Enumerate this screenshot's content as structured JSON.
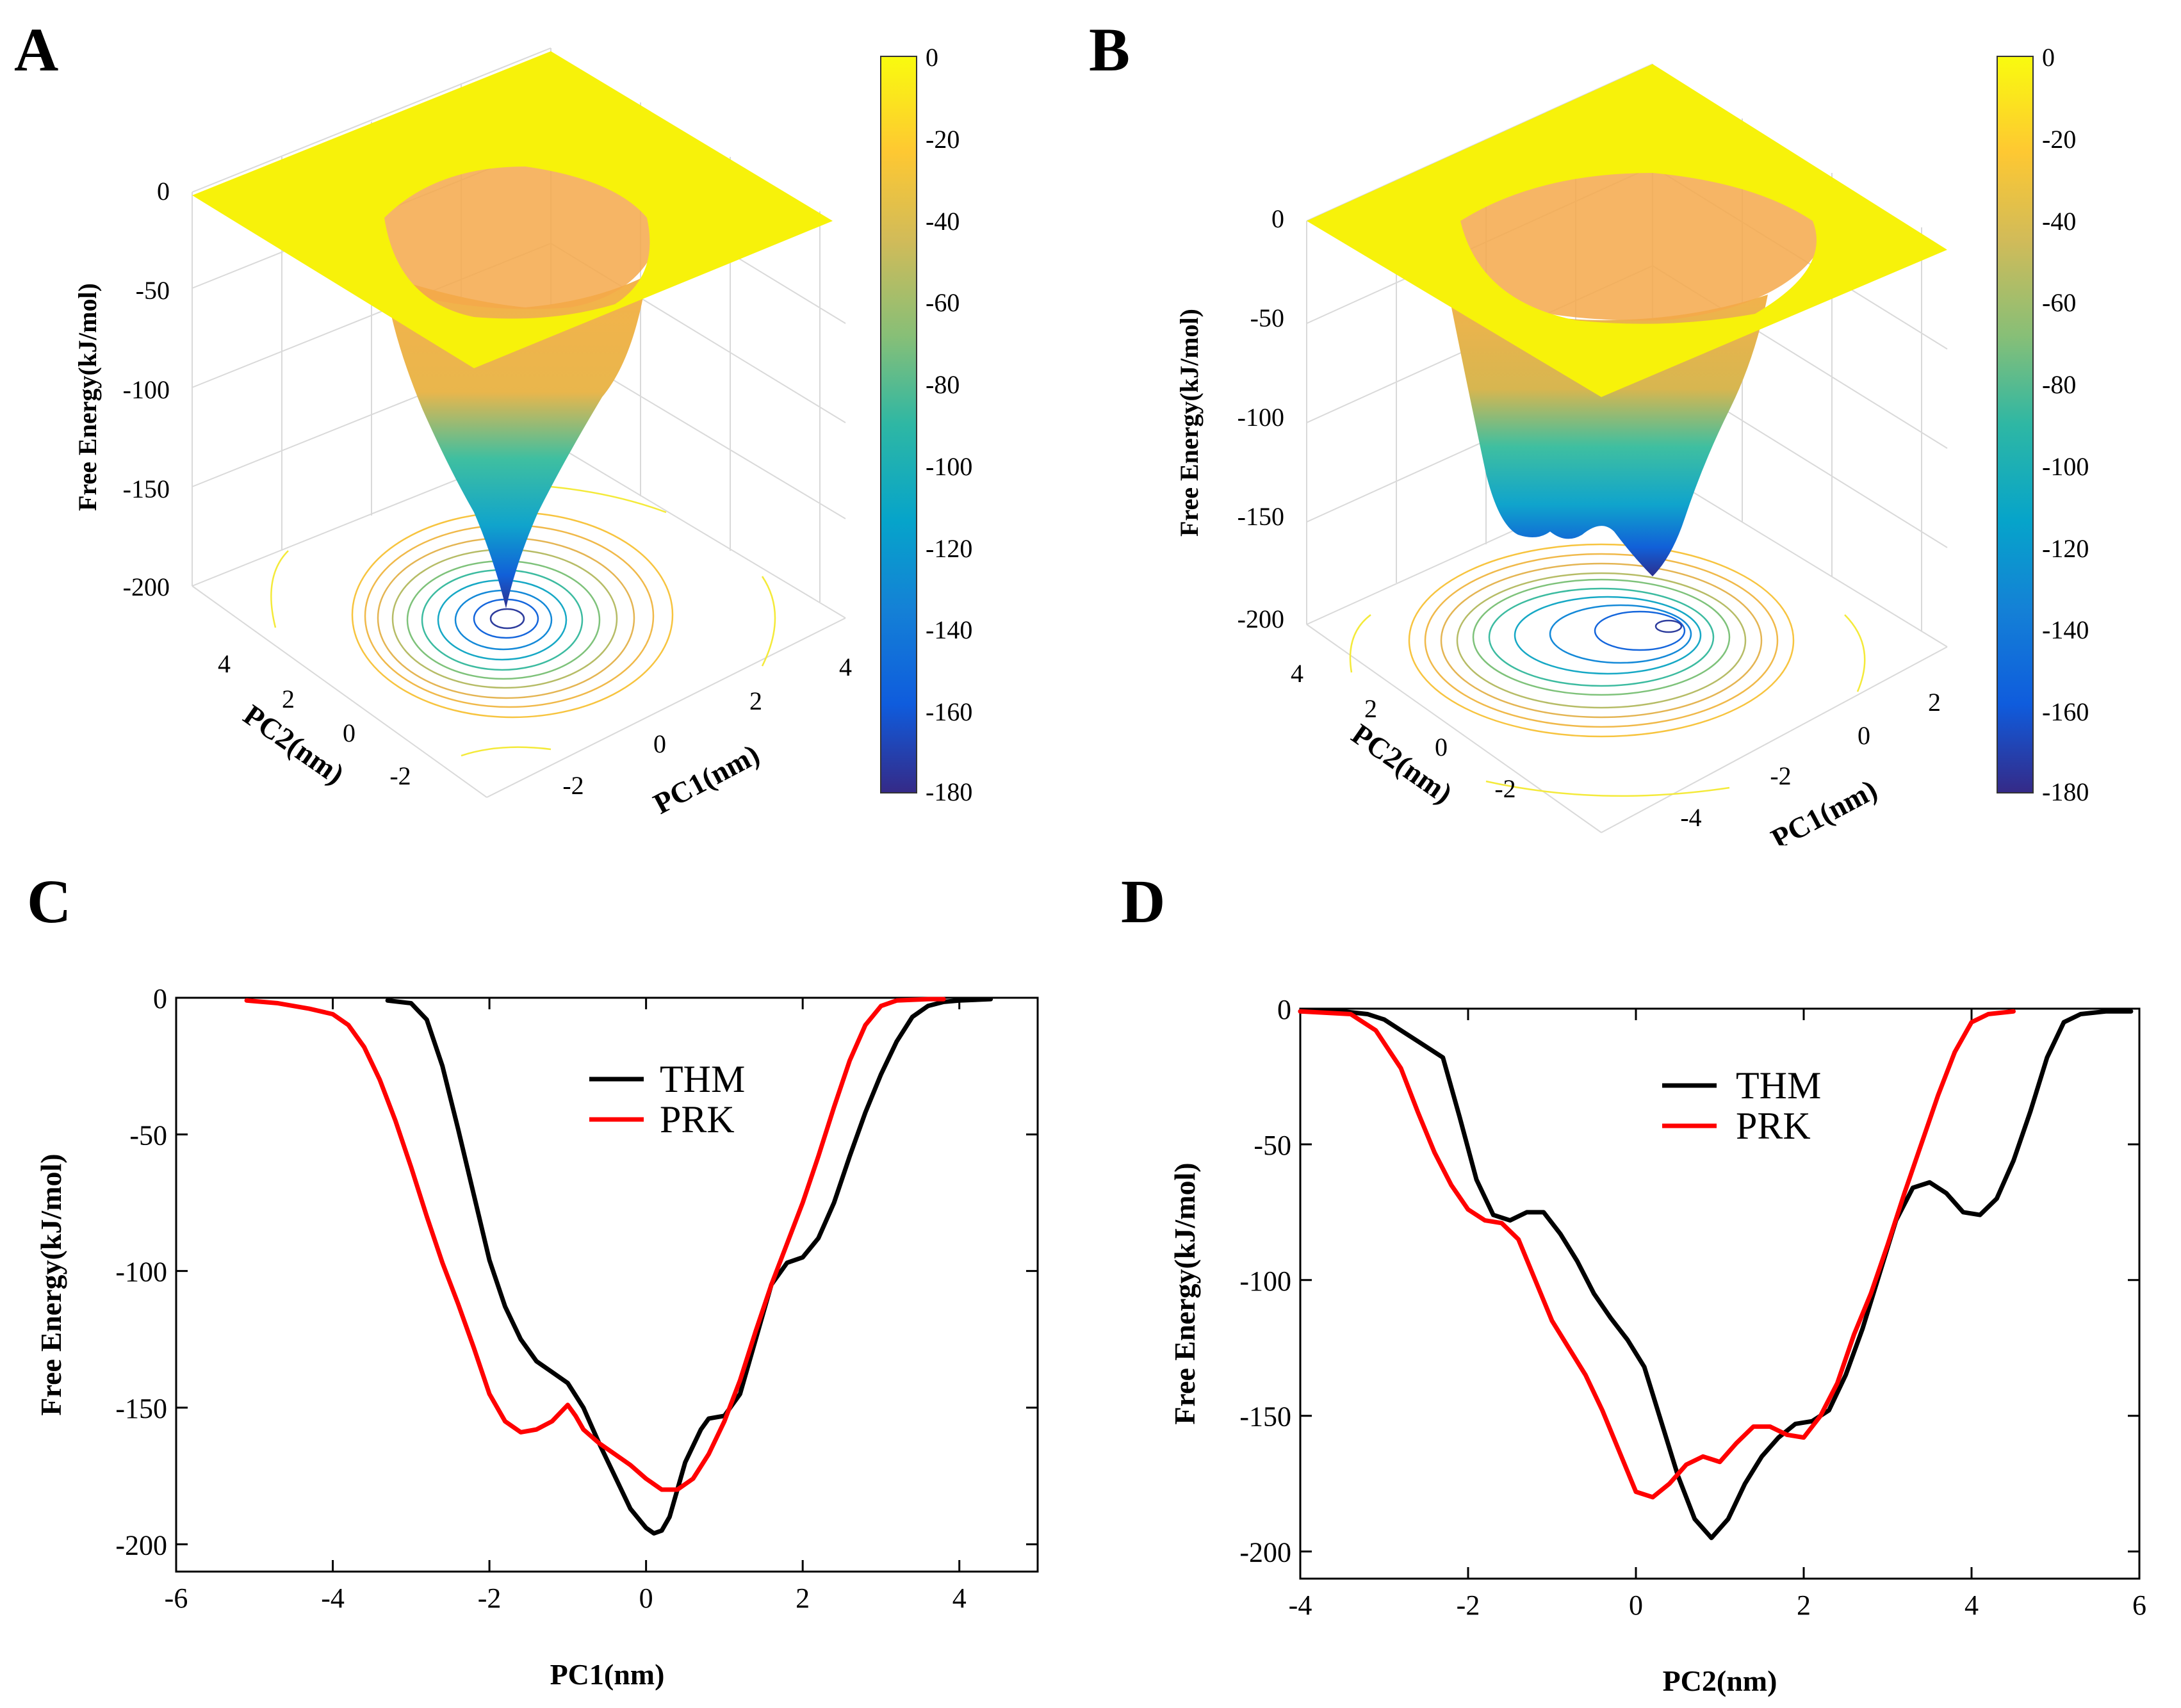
{
  "panels": {
    "A": {
      "letter": "A"
    },
    "B": {
      "letter": "B"
    },
    "C": {
      "letter": "C"
    },
    "D": {
      "letter": "D"
    }
  },
  "chart_data": [
    {
      "id": "A",
      "type": "heatmap",
      "title": "",
      "xlabel": "PC1(nm)",
      "ylabel": "PC2(nm)",
      "zlabel": "Free Energy(kJ/mol)",
      "x_ticks": [
        "-2",
        "0",
        "2",
        "4"
      ],
      "y_ticks": [
        "-2",
        "0",
        "2",
        "4"
      ],
      "z_ticks": [
        "0",
        "-50",
        "-100",
        "-150",
        "-200"
      ],
      "colorbar": {
        "ticks": [
          "0",
          "-20",
          "-40",
          "-60",
          "-80",
          "-100",
          "-120",
          "-140",
          "-160",
          "-180"
        ],
        "range": [
          -180,
          0
        ],
        "colors": [
          "#352a87",
          "#0f5cdd",
          "#1481d6",
          "#06a4ca",
          "#2eb7a4",
          "#87bf77",
          "#d1bb59",
          "#fec832",
          "#f9fb0e"
        ]
      },
      "minimum": -195
    },
    {
      "id": "B",
      "type": "heatmap",
      "title": "",
      "xlabel": "PC1(nm)",
      "ylabel": "PC2(nm)",
      "zlabel": "Free Energy(kJ/mol)",
      "x_ticks": [
        "-4",
        "-2",
        "0",
        "2"
      ],
      "y_ticks": [
        "-2",
        "0",
        "2",
        "4"
      ],
      "z_ticks": [
        "0",
        "-50",
        "-100",
        "-150",
        "-200"
      ],
      "colorbar": {
        "ticks": [
          "0",
          "-20",
          "-40",
          "-60",
          "-80",
          "-100",
          "-120",
          "-140",
          "-160",
          "-180"
        ],
        "range": [
          -180,
          0
        ],
        "colors": [
          "#352a87",
          "#0f5cdd",
          "#1481d6",
          "#06a4ca",
          "#2eb7a4",
          "#87bf77",
          "#d1bb59",
          "#fec832",
          "#f9fb0e"
        ]
      },
      "minimum": -180
    },
    {
      "id": "C",
      "type": "line",
      "xlabel": "PC1(nm)",
      "ylabel": "Free Energy(kJ/mol)",
      "xlim": [
        -6,
        5
      ],
      "ylim": [
        -210,
        0
      ],
      "x_ticks": [
        -6,
        -4,
        -2,
        0,
        2,
        4
      ],
      "y_ticks": [
        0,
        -50,
        -100,
        -150,
        -200
      ],
      "legend_position": "top-right",
      "series": [
        {
          "name": "THM",
          "color": "#000000",
          "x": [
            -3.3,
            -3.0,
            -2.8,
            -2.6,
            -2.4,
            -2.2,
            -2.0,
            -1.8,
            -1.6,
            -1.4,
            -1.2,
            -1.0,
            -0.8,
            -0.6,
            -0.4,
            -0.2,
            0.0,
            0.1,
            0.2,
            0.3,
            0.4,
            0.5,
            0.7,
            0.8,
            1.0,
            1.2,
            1.4,
            1.6,
            1.8,
            2.0,
            2.2,
            2.4,
            2.6,
            2.8,
            3.0,
            3.2,
            3.4,
            3.6,
            3.8,
            4.0,
            4.4
          ],
          "values": [
            -1,
            -2,
            -8,
            -25,
            -48,
            -72,
            -96,
            -113,
            -125,
            -133,
            -137,
            -141,
            -150,
            -163,
            -175,
            -187,
            -194,
            -196,
            -195,
            -190,
            -180,
            -170,
            -158,
            -154,
            -153,
            -145,
            -125,
            -105,
            -97,
            -95,
            -88,
            -75,
            -58,
            -42,
            -28,
            -16,
            -7,
            -3,
            -1.5,
            -1,
            -0.5
          ]
        },
        {
          "name": "PRK",
          "color": "#ff0000",
          "x": [
            -5.1,
            -4.7,
            -4.3,
            -4.0,
            -3.8,
            -3.6,
            -3.4,
            -3.2,
            -3.0,
            -2.8,
            -2.6,
            -2.4,
            -2.2,
            -2.0,
            -1.8,
            -1.6,
            -1.4,
            -1.2,
            -1.0,
            -0.9,
            -0.8,
            -0.6,
            -0.4,
            -0.2,
            0.0,
            0.2,
            0.4,
            0.6,
            0.8,
            1.0,
            1.2,
            1.4,
            1.6,
            1.8,
            2.0,
            2.2,
            2.4,
            2.6,
            2.8,
            3.0,
            3.2,
            3.6,
            3.8
          ],
          "values": [
            -1,
            -2,
            -4,
            -6,
            -10,
            -18,
            -30,
            -45,
            -62,
            -80,
            -97,
            -112,
            -128,
            -145,
            -155,
            -159,
            -158,
            -155,
            -149,
            -153,
            -158,
            -163,
            -167,
            -171,
            -176,
            -180,
            -180,
            -176,
            -167,
            -155,
            -140,
            -122,
            -105,
            -90,
            -75,
            -58,
            -40,
            -23,
            -10,
            -3,
            -1,
            -0.5,
            -0.5
          ]
        }
      ]
    },
    {
      "id": "D",
      "type": "line",
      "xlabel": "PC2(nm)",
      "ylabel": "Free Energy(kJ/mol)",
      "xlim": [
        -4,
        6
      ],
      "ylim": [
        -210,
        0
      ],
      "x_ticks": [
        -4,
        -2,
        0,
        2,
        4,
        6
      ],
      "y_ticks": [
        0,
        -50,
        -100,
        -150,
        -200
      ],
      "legend_position": "top-center",
      "series": [
        {
          "name": "THM",
          "color": "#000000",
          "x": [
            -4.0,
            -3.5,
            -3.2,
            -3.0,
            -2.8,
            -2.6,
            -2.3,
            -2.1,
            -1.9,
            -1.7,
            -1.5,
            -1.3,
            -1.1,
            -0.9,
            -0.7,
            -0.5,
            -0.3,
            -0.1,
            0.1,
            0.3,
            0.5,
            0.7,
            0.9,
            1.1,
            1.3,
            1.5,
            1.7,
            1.9,
            2.1,
            2.3,
            2.5,
            2.7,
            2.9,
            3.1,
            3.3,
            3.5,
            3.7,
            3.9,
            4.1,
            4.3,
            4.5,
            4.7,
            4.9,
            5.1,
            5.3,
            5.6,
            5.9
          ],
          "values": [
            -1,
            -1,
            -2,
            -4,
            -8,
            -12,
            -18,
            -40,
            -63,
            -76,
            -78,
            -75,
            -75,
            -83,
            -93,
            -105,
            -114,
            -122,
            -132,
            -152,
            -172,
            -188,
            -195,
            -188,
            -175,
            -165,
            -158,
            -153,
            -152,
            -148,
            -135,
            -118,
            -98,
            -78,
            -66,
            -64,
            -68,
            -75,
            -76,
            -70,
            -56,
            -38,
            -18,
            -5,
            -2,
            -1,
            -1
          ]
        },
        {
          "name": "PRK",
          "color": "#ff0000",
          "x": [
            -4.0,
            -3.4,
            -3.1,
            -2.8,
            -2.6,
            -2.4,
            -2.2,
            -2.0,
            -1.8,
            -1.6,
            -1.4,
            -1.2,
            -1.0,
            -0.8,
            -0.6,
            -0.4,
            -0.2,
            0.0,
            0.2,
            0.4,
            0.6,
            0.8,
            1.0,
            1.2,
            1.4,
            1.6,
            1.8,
            2.0,
            2.2,
            2.4,
            2.6,
            2.8,
            3.0,
            3.2,
            3.4,
            3.6,
            3.8,
            4.0,
            4.2,
            4.5
          ],
          "values": [
            -1,
            -2,
            -8,
            -22,
            -38,
            -53,
            -65,
            -74,
            -78,
            -79,
            -85,
            -100,
            -115,
            -125,
            -135,
            -148,
            -163,
            -178,
            -180,
            -175,
            -168,
            -165,
            -167,
            -160,
            -154,
            -154,
            -157,
            -158,
            -150,
            -138,
            -120,
            -105,
            -87,
            -68,
            -50,
            -32,
            -16,
            -5,
            -2,
            -1
          ]
        }
      ]
    }
  ]
}
